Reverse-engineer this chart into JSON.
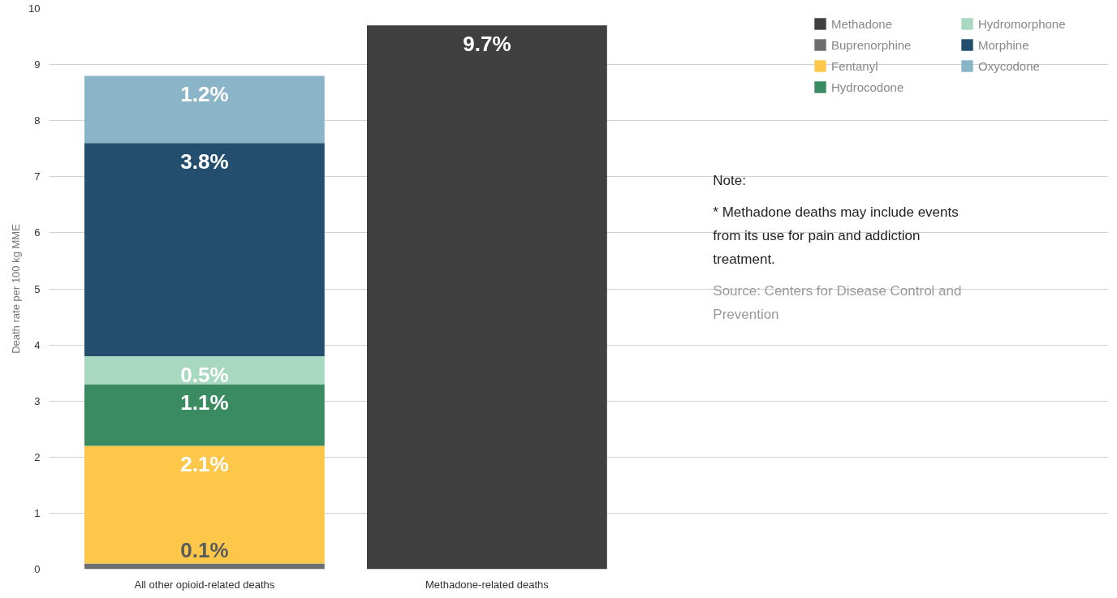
{
  "chart_data": {
    "type": "bar",
    "stacked": true,
    "categories": [
      "All other opioid-related deaths",
      "Methadone-related deaths"
    ],
    "ylabel": "Death rate per 100 kg MME",
    "ylim": [
      0,
      10
    ],
    "yticks": [
      0,
      1,
      2,
      3,
      4,
      5,
      6,
      7,
      8,
      9,
      10
    ],
    "grid": "y",
    "legend": "top right",
    "series": [
      {
        "name": "Methadone",
        "color": "#404040",
        "values": [
          null,
          9.7
        ],
        "value_labels": [
          null,
          "9.7%"
        ]
      },
      {
        "name": "Buprenorphine",
        "color": "#6d6e70",
        "values": [
          0.1,
          null
        ],
        "value_labels": [
          "0.1%",
          null
        ]
      },
      {
        "name": "Fentanyl",
        "color": "#fdc84a",
        "values": [
          2.1,
          null
        ],
        "value_labels": [
          "2.1%",
          null
        ]
      },
      {
        "name": "Hydrocodone",
        "color": "#3a8a62",
        "values": [
          1.1,
          null
        ],
        "value_labels": [
          "1.1%",
          null
        ]
      },
      {
        "name": "Hydromorphone",
        "color": "#a8d8c0",
        "values": [
          0.5,
          null
        ],
        "value_labels": [
          "0.5%",
          null
        ]
      },
      {
        "name": "Morphine",
        "color": "#234e6d",
        "values": [
          3.8,
          null
        ],
        "value_labels": [
          "3.8%",
          null
        ]
      },
      {
        "name": "Oxycodone",
        "color": "#8ab4c8",
        "values": [
          1.2,
          null
        ],
        "value_labels": [
          "1.2%",
          null
        ]
      }
    ],
    "annotations": [
      "Note:",
      "* Methadone deaths may include events from its use for pain and addiction treatment.",
      "Source: Centers for Disease Control and Prevention"
    ]
  }
}
